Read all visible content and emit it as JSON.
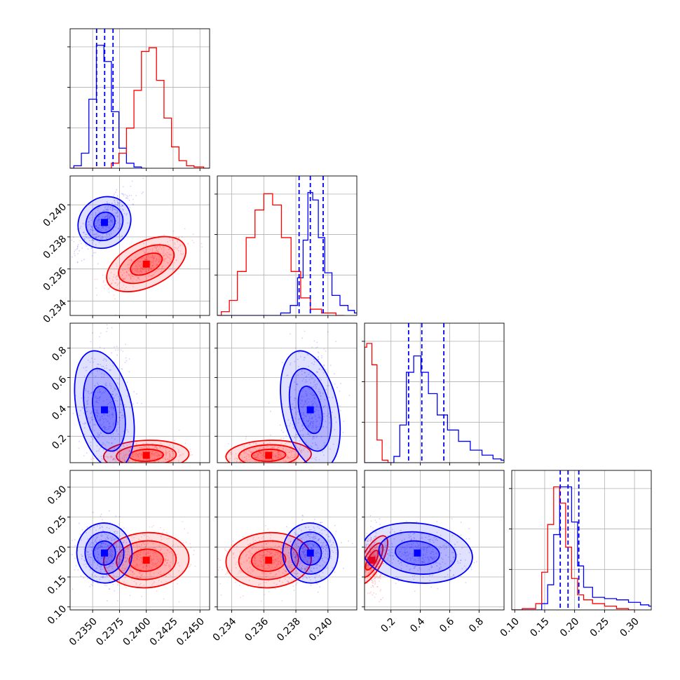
{
  "colors": {
    "series_a": "#0000ff",
    "series_b": "#ff0000",
    "grid": "#b0b0b0",
    "frame": "#000000"
  },
  "chart_data": {
    "type": "scatter",
    "subtype": "corner-plot",
    "title": "",
    "grid": true,
    "legend": "none",
    "parameters": [
      {
        "range": [
          0.2329,
          0.2459
        ],
        "ticks": [
          0.235,
          0.2375,
          0.24,
          0.2425,
          0.245
        ],
        "tick_labels": [
          "0.2350",
          "0.2375",
          "0.2400",
          "0.2425",
          "0.2450"
        ]
      },
      {
        "range": [
          0.2331,
          0.2418
        ],
        "ticks": [
          0.234,
          0.236,
          0.238,
          0.24
        ],
        "tick_labels": [
          "0.234",
          "0.236",
          "0.238",
          "0.240"
        ]
      },
      {
        "range": [
          0.02,
          0.97
        ],
        "ticks": [
          0.2,
          0.4,
          0.6,
          0.8
        ],
        "tick_labels": [
          "0.2",
          "0.4",
          "0.6",
          "0.8"
        ]
      },
      {
        "range": [
          0.095,
          0.328
        ],
        "ticks": [
          0.1,
          0.15,
          0.2,
          0.25,
          0.3
        ],
        "tick_labels": [
          "0.10",
          "0.15",
          "0.20",
          "0.25",
          "0.30"
        ]
      }
    ],
    "series": [
      {
        "color": "#0000ff",
        "quantiles": [
          [
            0.23537,
            0.23612,
            0.2369
          ],
          [
            0.2382,
            0.2389,
            0.2397
          ],
          [
            0.32,
            0.41,
            0.56
          ],
          [
            0.176,
            0.189,
            0.207
          ]
        ],
        "centers": [
          0.2361,
          0.2389,
          0.38,
          0.19
        ],
        "hist_pdf": [
          [
            [
              0.2329,
              0.0
            ],
            [
              0.2336,
              0.02
            ],
            [
              0.2343,
              0.12
            ],
            [
              0.235,
              0.55
            ],
            [
              0.2357,
              0.98
            ],
            [
              0.2364,
              0.85
            ],
            [
              0.2371,
              0.45
            ],
            [
              0.2378,
              0.16
            ],
            [
              0.2385,
              0.04
            ],
            [
              0.2392,
              0.01
            ],
            [
              0.2399,
              0.0
            ]
          ],
          [
            [
              0.2331,
              0.0
            ],
            [
              0.2367,
              0.0
            ],
            [
              0.2374,
              0.02
            ],
            [
              0.2379,
              0.08
            ],
            [
              0.2383,
              0.3
            ],
            [
              0.2386,
              0.6
            ],
            [
              0.2389,
              0.98
            ],
            [
              0.2392,
              0.92
            ],
            [
              0.2396,
              0.62
            ],
            [
              0.24,
              0.34
            ],
            [
              0.2405,
              0.16
            ],
            [
              0.241,
              0.08
            ],
            [
              0.2415,
              0.04
            ],
            [
              0.2418,
              0.02
            ]
          ],
          [
            [
              0.02,
              0.0
            ],
            [
              0.2,
              0.0
            ],
            [
              0.24,
              0.05
            ],
            [
              0.28,
              0.3
            ],
            [
              0.33,
              0.72
            ],
            [
              0.38,
              0.85
            ],
            [
              0.43,
              0.72
            ],
            [
              0.48,
              0.55
            ],
            [
              0.55,
              0.38
            ],
            [
              0.62,
              0.26
            ],
            [
              0.7,
              0.17
            ],
            [
              0.78,
              0.1
            ],
            [
              0.86,
              0.06
            ],
            [
              0.93,
              0.03
            ],
            [
              0.97,
              0.02
            ]
          ],
          [
            [
              0.095,
              0.0
            ],
            [
              0.14,
              0.0
            ],
            [
              0.15,
              0.05
            ],
            [
              0.16,
              0.2
            ],
            [
              0.17,
              0.6
            ],
            [
              0.18,
              0.98
            ],
            [
              0.19,
              0.98
            ],
            [
              0.2,
              0.7
            ],
            [
              0.21,
              0.35
            ],
            [
              0.22,
              0.18
            ],
            [
              0.24,
              0.1
            ],
            [
              0.26,
              0.09
            ],
            [
              0.28,
              0.08
            ],
            [
              0.3,
              0.06
            ],
            [
              0.32,
              0.04
            ],
            [
              0.328,
              0.03
            ]
          ]
        ]
      },
      {
        "color": "#ff0000",
        "quantiles": [],
        "centers": [
          0.24,
          0.2363,
          0.07,
          0.178
        ],
        "hist_pdf": [
          [
            [
              0.2329,
              0.0
            ],
            [
              0.2364,
              0.0
            ],
            [
              0.2371,
              0.04
            ],
            [
              0.2378,
              0.12
            ],
            [
              0.2385,
              0.32
            ],
            [
              0.2392,
              0.62
            ],
            [
              0.2399,
              0.93
            ],
            [
              0.2406,
              0.96
            ],
            [
              0.2413,
              0.7
            ],
            [
              0.242,
              0.4
            ],
            [
              0.2427,
              0.17
            ],
            [
              0.2434,
              0.06
            ],
            [
              0.2441,
              0.02
            ],
            [
              0.2448,
              0.01
            ],
            [
              0.2459,
              0.0
            ]
          ],
          [
            [
              0.2331,
              0.0
            ],
            [
              0.2336,
              0.03
            ],
            [
              0.2341,
              0.12
            ],
            [
              0.2346,
              0.35
            ],
            [
              0.2352,
              0.62
            ],
            [
              0.2357,
              0.84
            ],
            [
              0.2363,
              0.97
            ],
            [
              0.2368,
              0.88
            ],
            [
              0.2374,
              0.62
            ],
            [
              0.238,
              0.35
            ],
            [
              0.2386,
              0.14
            ],
            [
              0.2392,
              0.05
            ],
            [
              0.24,
              0.02
            ],
            [
              0.241,
              0.0
            ]
          ],
          [
            [
              0.02,
              0.92
            ],
            [
              0.05,
              0.95
            ],
            [
              0.09,
              0.78
            ],
            [
              0.12,
              0.18
            ],
            [
              0.16,
              0.02
            ],
            [
              0.2,
              0.0
            ]
          ],
          [
            [
              0.095,
              0.0
            ],
            [
              0.13,
              0.01
            ],
            [
              0.14,
              0.05
            ],
            [
              0.15,
              0.3
            ],
            [
              0.16,
              0.68
            ],
            [
              0.17,
              0.98
            ],
            [
              0.18,
              0.85
            ],
            [
              0.19,
              0.5
            ],
            [
              0.2,
              0.25
            ],
            [
              0.21,
              0.12
            ],
            [
              0.22,
              0.08
            ],
            [
              0.24,
              0.05
            ],
            [
              0.26,
              0.03
            ],
            [
              0.28,
              0.01
            ],
            [
              0.3,
              0.0
            ]
          ]
        ]
      }
    ]
  }
}
